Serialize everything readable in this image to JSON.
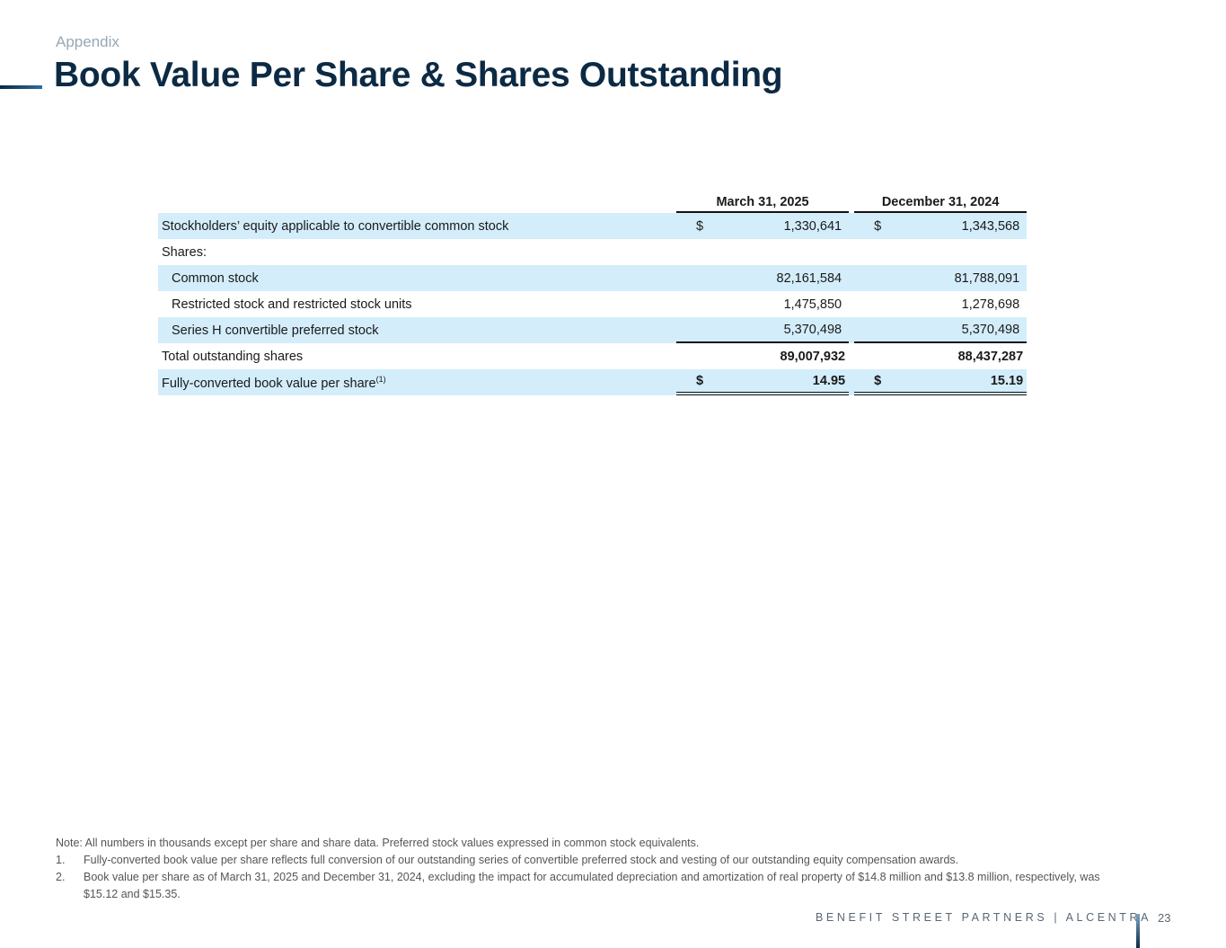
{
  "header": {
    "section": "Appendix",
    "title": "Book Value Per Share & Shares Outstanding"
  },
  "table": {
    "columns": [
      "March 31, 2025",
      "December 31, 2024"
    ],
    "rows": [
      {
        "label": "Stockholders’ equity applicable to convertible common stock",
        "cells": [
          {
            "currency": "$",
            "value": "1,330,641"
          },
          {
            "currency": "$",
            "value": "1,343,568"
          }
        ]
      },
      {
        "label": "Shares:"
      },
      {
        "label": "Common stock",
        "cells": [
          {
            "value": "82,161,584"
          },
          {
            "value": "81,788,091"
          }
        ]
      },
      {
        "label": "Restricted stock and restricted stock units",
        "cells": [
          {
            "value": "1,475,850"
          },
          {
            "value": "1,278,698"
          }
        ]
      },
      {
        "label": "Series H convertible preferred stock",
        "cells": [
          {
            "value": "5,370,498"
          },
          {
            "value": "5,370,498"
          }
        ]
      },
      {
        "label": "Total outstanding shares",
        "cells": [
          {
            "value": "89,007,932"
          },
          {
            "value": "88,437,287"
          }
        ]
      },
      {
        "label": "Fully-converted book value per share",
        "superscript": "(1)",
        "cells": [
          {
            "currency": "$",
            "value": "14.95"
          },
          {
            "currency": "$",
            "value": "15.19"
          }
        ]
      }
    ]
  },
  "notes": {
    "intro": "Note: All numbers in thousands except per share and share data. Preferred stock values expressed in common stock equivalents.",
    "items": [
      {
        "marker": "1.",
        "text": "Fully-converted book value per share reflects full conversion of our outstanding series of convertible preferred stock and vesting of our outstanding equity compensation awards."
      },
      {
        "marker": "2.",
        "text": "Book value per share as of  March 31, 2025 and December 31, 2024, excluding the impact for accumulated depreciation and amortization of real property of $14.8 million and $13.8 million, respectively, was $15.12 and $15.35."
      }
    ]
  },
  "footer": {
    "brand": "BENEFIT STREET PARTNERS | ALCENTRA",
    "page": "23"
  }
}
